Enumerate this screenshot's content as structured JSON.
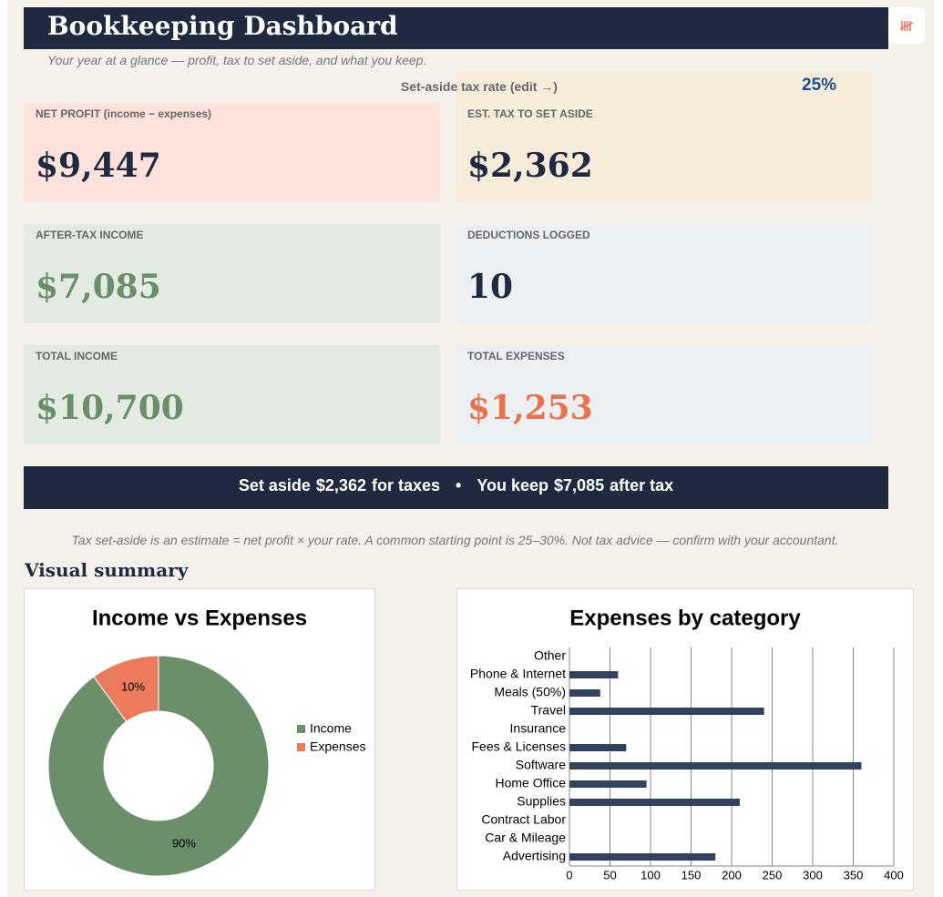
{
  "header": {
    "title": "Bookkeeping Dashboard",
    "subtitle": "Your year at a glance — profit, tax to set aside, and what you keep."
  },
  "tax_rate": {
    "label": "Set-aside tax rate (edit →)",
    "value": "25%"
  },
  "cards": [
    {
      "label": "NET PROFIT (income − expenses)",
      "value": "$9,447",
      "background": "#fde3dc",
      "color": "#1f2a40"
    },
    {
      "label": "EST. TAX TO SET ASIDE",
      "value": "$2,362",
      "background": "#f7ecd9",
      "color": "#1f2a40"
    },
    {
      "label": "AFTER-TAX INCOME",
      "value": "$7,085",
      "background": "#e3ebe2",
      "color": "#6b8f6b"
    },
    {
      "label": "DEDUCTIONS LOGGED",
      "value": "10",
      "background": "#edf0f2",
      "color": "#1f2a40"
    },
    {
      "label": "TOTAL INCOME",
      "value": "$10,700",
      "background": "#e3ebe2",
      "color": "#6b8f6b"
    },
    {
      "label": "TOTAL EXPENSES",
      "value": "$1,253",
      "background": "#edf0f2",
      "color": "#e8734f"
    }
  ],
  "banner": [
    "Set aside",
    "$2,362",
    "for taxes",
    "•",
    "You keep",
    "$7,085",
    "after tax"
  ],
  "note": "Tax set-aside is an estimate = net profit × your rate. A common starting point is 25–30%. Not tax advice — confirm with your accountant.",
  "section_title": "Visual summary",
  "chart_data": [
    {
      "type": "pie",
      "title": "Income vs Expenses",
      "categories": [
        "Income",
        "Expenses"
      ],
      "values": [
        90,
        10
      ],
      "value_labels": [
        "90%",
        "10%"
      ],
      "colors": [
        "#6b8f6b",
        "#ec7b5c"
      ],
      "legend": "right"
    },
    {
      "type": "hbar",
      "title": "Expenses by category",
      "categories": [
        "Advertising",
        "Car & Mileage",
        "Contract Labor",
        "Supplies",
        "Home Office",
        "Software",
        "Fees & Licenses",
        "Insurance",
        "Travel",
        "Meals (50%)",
        "Phone & Internet",
        "Other"
      ],
      "values": [
        180,
        0,
        0,
        210,
        95,
        360,
        70,
        0,
        240,
        38,
        60,
        0
      ],
      "color": "#33425e",
      "xlim": [
        0,
        400
      ],
      "xticks": [
        0,
        50,
        100,
        150,
        200,
        250,
        300,
        350,
        400
      ],
      "grid": true
    }
  ]
}
